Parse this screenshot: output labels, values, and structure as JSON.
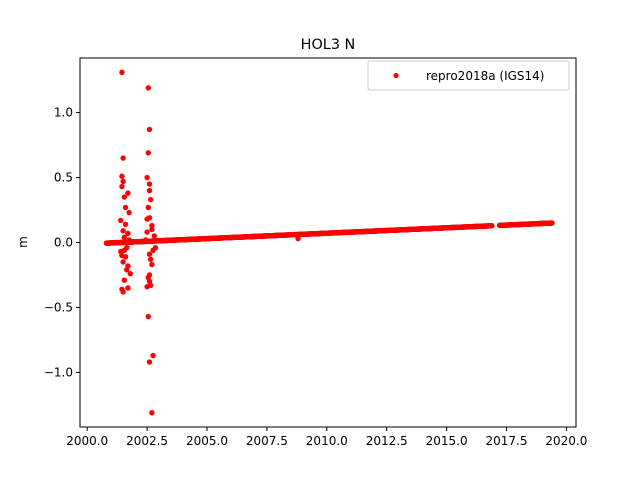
{
  "chart_data": {
    "type": "scatter",
    "title": "HOL3 N",
    "xlabel": "",
    "ylabel": "m",
    "xlim": [
      1999.7,
      2020.4
    ],
    "ylim": [
      -1.42,
      1.42
    ],
    "x_ticks": [
      2000.0,
      2002.5,
      2005.0,
      2007.5,
      2010.0,
      2012.5,
      2015.0,
      2017.5,
      2020.0
    ],
    "x_tick_labels": [
      "2000.0",
      "2002.5",
      "2005.0",
      "2007.5",
      "2010.0",
      "2012.5",
      "2015.0",
      "2017.5",
      "2020.0"
    ],
    "y_ticks": [
      -1.0,
      -0.5,
      0.0,
      0.5,
      1.0
    ],
    "y_tick_labels": [
      "−1.0",
      "−0.5",
      "0.0",
      "0.5",
      "1.0"
    ],
    "grid": false,
    "legend": {
      "placement": "top-right",
      "entries": [
        "repro2018a (IGS14)"
      ]
    },
    "series": [
      {
        "name": "repro2018a (IGS14)",
        "color": "#ff0000",
        "marker": "circle",
        "trend": {
          "x_start": 2000.8,
          "y_start": -0.005,
          "x_end": 2019.4,
          "y_end": 0.15
        },
        "gap": [
          2016.9,
          2017.2
        ],
        "points": [
          [
            2001.45,
            1.31
          ],
          [
            2001.5,
            0.65
          ],
          [
            2001.45,
            0.51
          ],
          [
            2001.5,
            0.47
          ],
          [
            2001.45,
            0.43
          ],
          [
            2001.55,
            0.35
          ],
          [
            2001.7,
            0.38
          ],
          [
            2001.75,
            0.23
          ],
          [
            2001.4,
            0.17
          ],
          [
            2001.6,
            0.14
          ],
          [
            2001.5,
            0.09
          ],
          [
            2001.7,
            0.07
          ],
          [
            2001.4,
            -0.07
          ],
          [
            2001.6,
            -0.11
          ],
          [
            2001.5,
            -0.15
          ],
          [
            2001.7,
            -0.18
          ],
          [
            2001.8,
            -0.24
          ],
          [
            2001.55,
            -0.29
          ],
          [
            2001.45,
            -0.36
          ],
          [
            2001.5,
            -0.38
          ],
          [
            2001.7,
            -0.35
          ],
          [
            2001.65,
            -0.21
          ],
          [
            2001.55,
            0.04
          ],
          [
            2001.65,
            -0.04
          ],
          [
            2001.75,
            0.02
          ],
          [
            2001.6,
            0.27
          ],
          [
            2001.45,
            -0.1
          ],
          [
            2001.55,
            -0.06
          ],
          [
            2002.55,
            1.19
          ],
          [
            2002.6,
            0.87
          ],
          [
            2002.55,
            0.69
          ],
          [
            2002.5,
            0.5
          ],
          [
            2002.6,
            0.45
          ],
          [
            2002.6,
            0.4
          ],
          [
            2002.65,
            0.33
          ],
          [
            2002.55,
            0.27
          ],
          [
            2002.5,
            0.18
          ],
          [
            2002.6,
            0.19
          ],
          [
            2002.7,
            0.1
          ],
          [
            2002.5,
            0.08
          ],
          [
            2002.6,
            -0.09
          ],
          [
            2002.65,
            -0.13
          ],
          [
            2002.7,
            -0.17
          ],
          [
            2002.6,
            -0.25
          ],
          [
            2002.55,
            -0.27
          ],
          [
            2002.5,
            -0.34
          ],
          [
            2002.65,
            -0.33
          ],
          [
            2002.6,
            -0.3
          ],
          [
            2002.55,
            -0.57
          ],
          [
            2002.75,
            -0.87
          ],
          [
            2002.6,
            -0.92
          ],
          [
            2002.7,
            -1.31
          ],
          [
            2002.8,
            0.05
          ],
          [
            2002.85,
            -0.04
          ],
          [
            2002.45,
            0.02
          ],
          [
            2002.75,
            -0.06
          ],
          [
            2002.7,
            0.13
          ],
          [
            2008.8,
            0.03
          ]
        ]
      }
    ]
  }
}
